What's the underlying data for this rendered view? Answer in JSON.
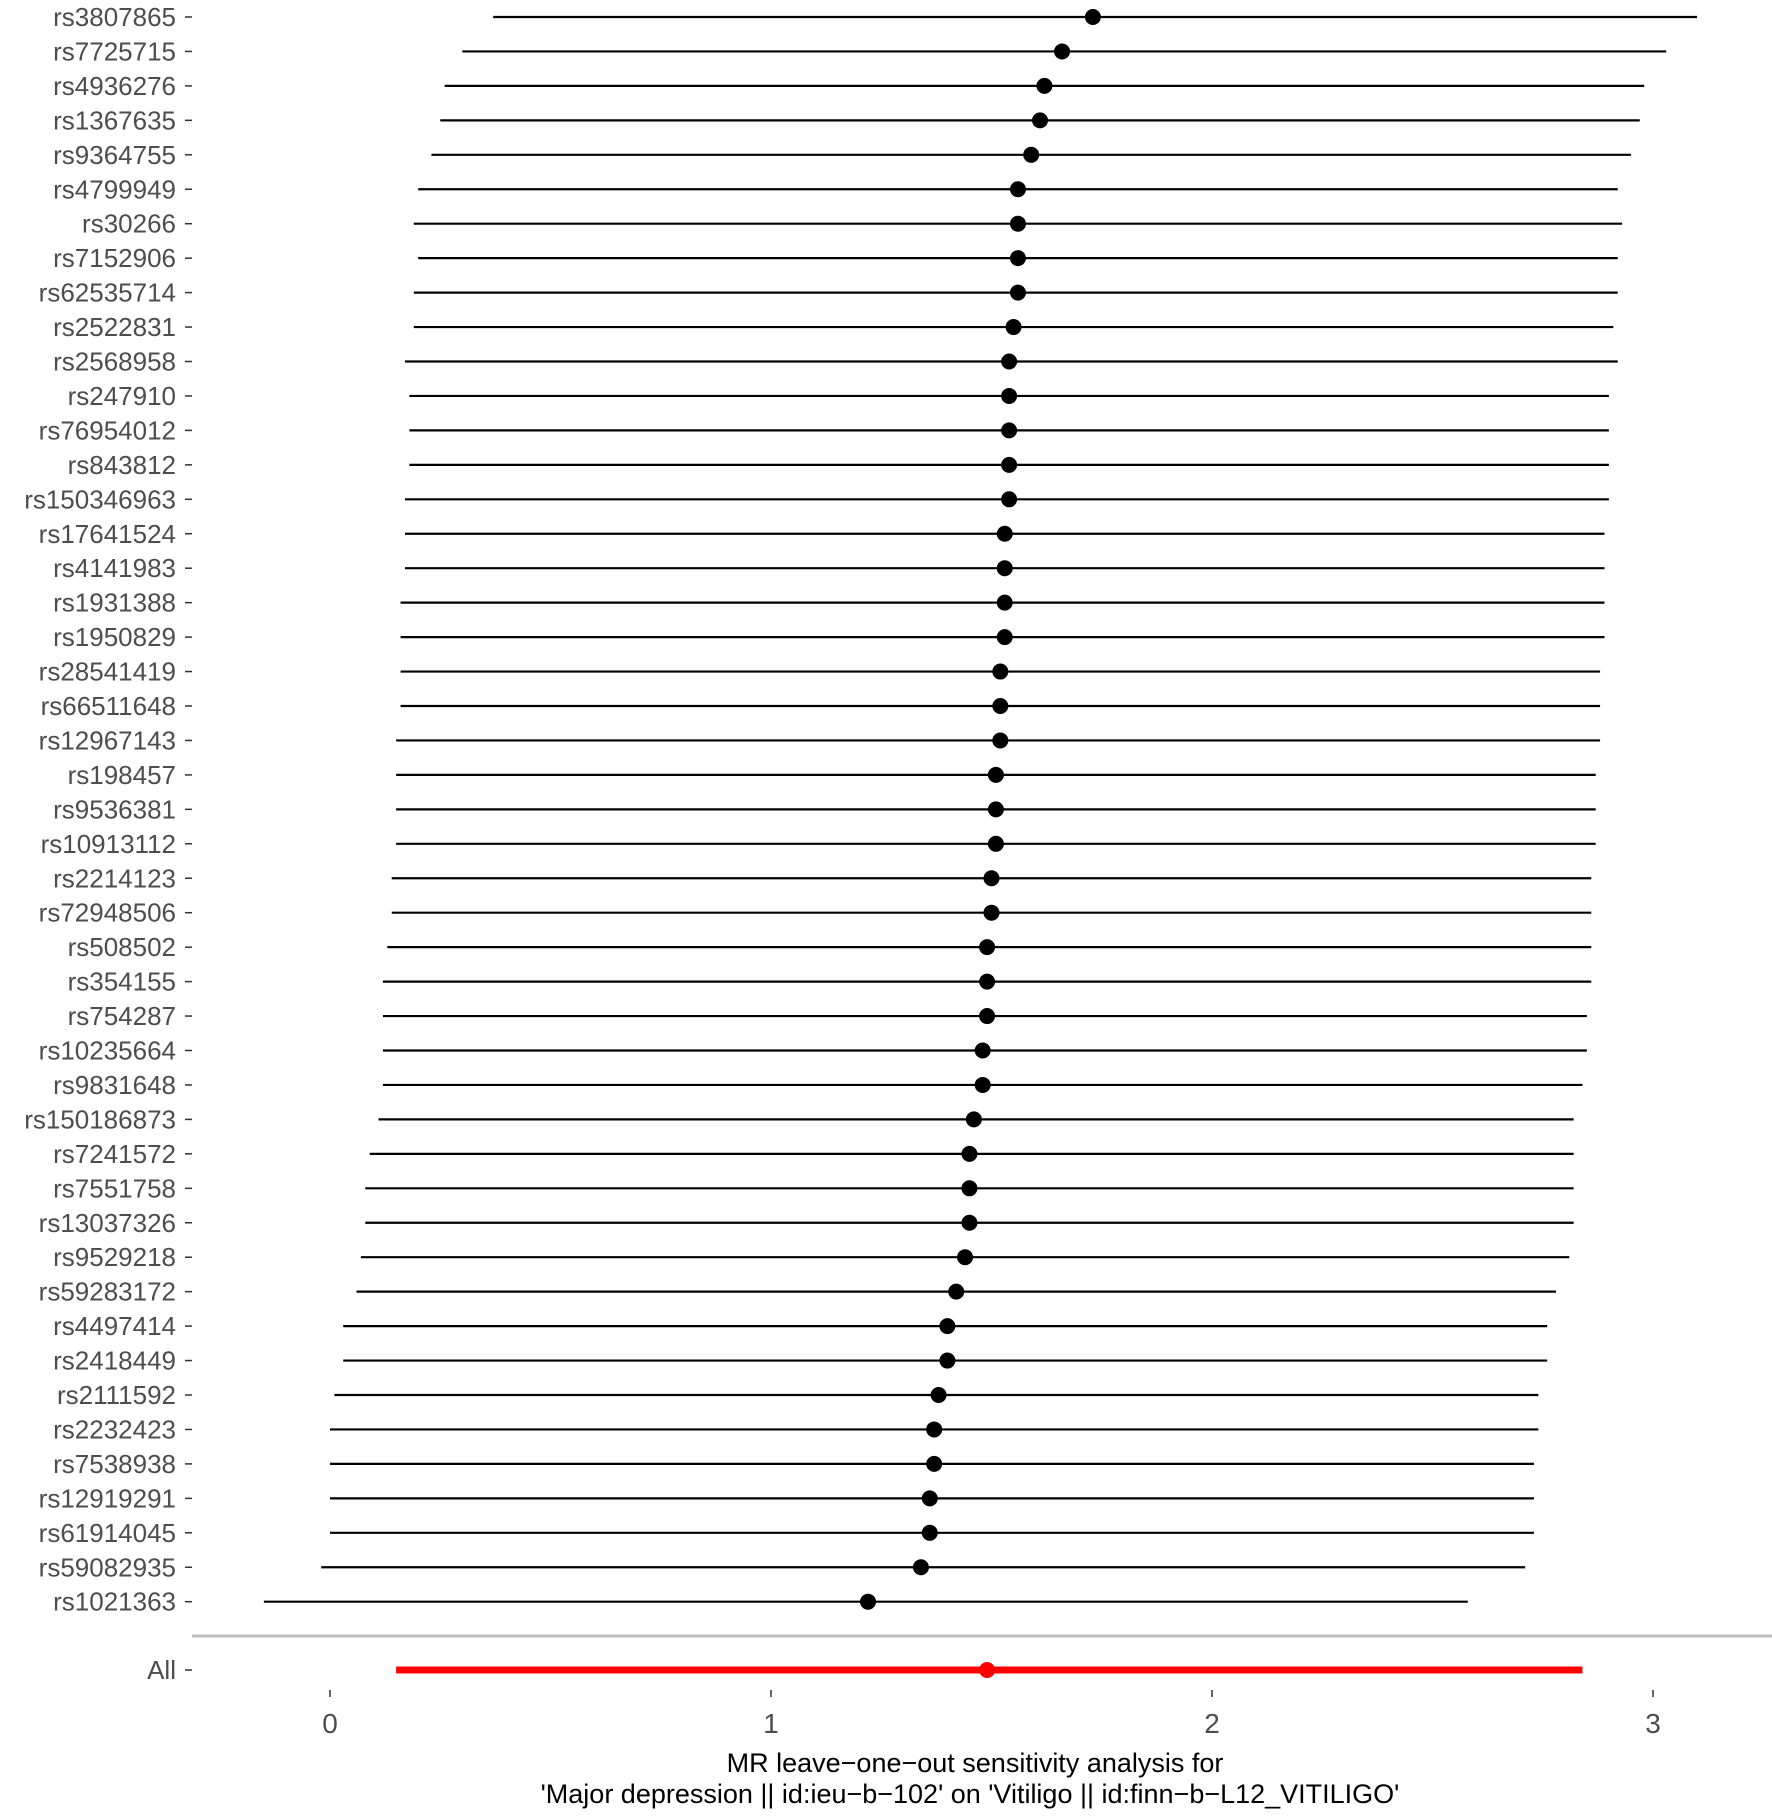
{
  "chart_data": {
    "type": "forest",
    "xlabel_line1": "MR leave−one−out sensitivity analysis for",
    "xlabel_line2": "'Major depression || id:ieu−b−102' on 'Vitiligo || id:finn−b−L12_VITILIGO'",
    "xlim": [
      -0.31,
      3.26
    ],
    "x_ticks": [
      0,
      1,
      2,
      3
    ],
    "x_tick_labels": [
      "0",
      "1",
      "2",
      "3"
    ],
    "grid": false,
    "snps": [
      {
        "label": "rs3807865",
        "b": 1.73,
        "lo": 0.37,
        "hi": 3.1
      },
      {
        "label": "rs7725715",
        "b": 1.66,
        "lo": 0.3,
        "hi": 3.03
      },
      {
        "label": "rs4936276",
        "b": 1.62,
        "lo": 0.26,
        "hi": 2.98
      },
      {
        "label": "rs1367635",
        "b": 1.61,
        "lo": 0.25,
        "hi": 2.97
      },
      {
        "label": "rs9364755",
        "b": 1.59,
        "lo": 0.23,
        "hi": 2.95
      },
      {
        "label": "rs4799949",
        "b": 1.56,
        "lo": 0.2,
        "hi": 2.92
      },
      {
        "label": "rs30266",
        "b": 1.56,
        "lo": 0.19,
        "hi": 2.93
      },
      {
        "label": "rs7152906",
        "b": 1.56,
        "lo": 0.2,
        "hi": 2.92
      },
      {
        "label": "rs62535714",
        "b": 1.56,
        "lo": 0.19,
        "hi": 2.92
      },
      {
        "label": "rs2522831",
        "b": 1.55,
        "lo": 0.19,
        "hi": 2.91
      },
      {
        "label": "rs2568958",
        "b": 1.54,
        "lo": 0.17,
        "hi": 2.92
      },
      {
        "label": "rs247910",
        "b": 1.54,
        "lo": 0.18,
        "hi": 2.9
      },
      {
        "label": "rs76954012",
        "b": 1.54,
        "lo": 0.18,
        "hi": 2.9
      },
      {
        "label": "rs843812",
        "b": 1.54,
        "lo": 0.18,
        "hi": 2.9
      },
      {
        "label": "rs150346963",
        "b": 1.54,
        "lo": 0.17,
        "hi": 2.9
      },
      {
        "label": "rs17641524",
        "b": 1.53,
        "lo": 0.17,
        "hi": 2.89
      },
      {
        "label": "rs4141983",
        "b": 1.53,
        "lo": 0.17,
        "hi": 2.89
      },
      {
        "label": "rs1931388",
        "b": 1.53,
        "lo": 0.16,
        "hi": 2.89
      },
      {
        "label": "rs1950829",
        "b": 1.53,
        "lo": 0.16,
        "hi": 2.89
      },
      {
        "label": "rs28541419",
        "b": 1.52,
        "lo": 0.16,
        "hi": 2.88
      },
      {
        "label": "rs66511648",
        "b": 1.52,
        "lo": 0.16,
        "hi": 2.88
      },
      {
        "label": "rs12967143",
        "b": 1.52,
        "lo": 0.15,
        "hi": 2.88
      },
      {
        "label": "rs198457",
        "b": 1.51,
        "lo": 0.15,
        "hi": 2.87
      },
      {
        "label": "rs9536381",
        "b": 1.51,
        "lo": 0.15,
        "hi": 2.87
      },
      {
        "label": "rs10913112",
        "b": 1.51,
        "lo": 0.15,
        "hi": 2.87
      },
      {
        "label": "rs2214123",
        "b": 1.5,
        "lo": 0.14,
        "hi": 2.86
      },
      {
        "label": "rs72948506",
        "b": 1.5,
        "lo": 0.14,
        "hi": 2.86
      },
      {
        "label": "rs508502",
        "b": 1.49,
        "lo": 0.13,
        "hi": 2.86
      },
      {
        "label": "rs354155",
        "b": 1.49,
        "lo": 0.12,
        "hi": 2.86
      },
      {
        "label": "rs754287",
        "b": 1.49,
        "lo": 0.12,
        "hi": 2.85
      },
      {
        "label": "rs10235664",
        "b": 1.48,
        "lo": 0.12,
        "hi": 2.85
      },
      {
        "label": "rs9831648",
        "b": 1.48,
        "lo": 0.12,
        "hi": 2.84
      },
      {
        "label": "rs150186873",
        "b": 1.46,
        "lo": 0.11,
        "hi": 2.82
      },
      {
        "label": "rs7241572",
        "b": 1.45,
        "lo": 0.09,
        "hi": 2.82
      },
      {
        "label": "rs7551758",
        "b": 1.45,
        "lo": 0.08,
        "hi": 2.82
      },
      {
        "label": "rs13037326",
        "b": 1.45,
        "lo": 0.08,
        "hi": 2.82
      },
      {
        "label": "rs9529218",
        "b": 1.44,
        "lo": 0.07,
        "hi": 2.81
      },
      {
        "label": "rs59283172",
        "b": 1.42,
        "lo": 0.06,
        "hi": 2.78
      },
      {
        "label": "rs4497414",
        "b": 1.4,
        "lo": 0.03,
        "hi": 2.76
      },
      {
        "label": "rs2418449",
        "b": 1.4,
        "lo": 0.03,
        "hi": 2.76
      },
      {
        "label": "rs2111592",
        "b": 1.38,
        "lo": 0.01,
        "hi": 2.74
      },
      {
        "label": "rs2232423",
        "b": 1.37,
        "lo": 0.0,
        "hi": 2.74
      },
      {
        "label": "rs7538938",
        "b": 1.37,
        "lo": 0.0,
        "hi": 2.73
      },
      {
        "label": "rs12919291",
        "b": 1.36,
        "lo": 0.0,
        "hi": 2.73
      },
      {
        "label": "rs61914045",
        "b": 1.36,
        "lo": 0.0,
        "hi": 2.73
      },
      {
        "label": "rs59082935",
        "b": 1.34,
        "lo": -0.02,
        "hi": 2.71
      },
      {
        "label": "rs1021363",
        "b": 1.22,
        "lo": -0.15,
        "hi": 2.58
      }
    ],
    "overall": {
      "label": "All",
      "b": 1.49,
      "lo": 0.15,
      "hi": 2.84
    },
    "colors": {
      "snp": "#000000",
      "overall": "#ff0000",
      "separator": "#bebebe",
      "tick_label": "#4d4d4d"
    }
  }
}
